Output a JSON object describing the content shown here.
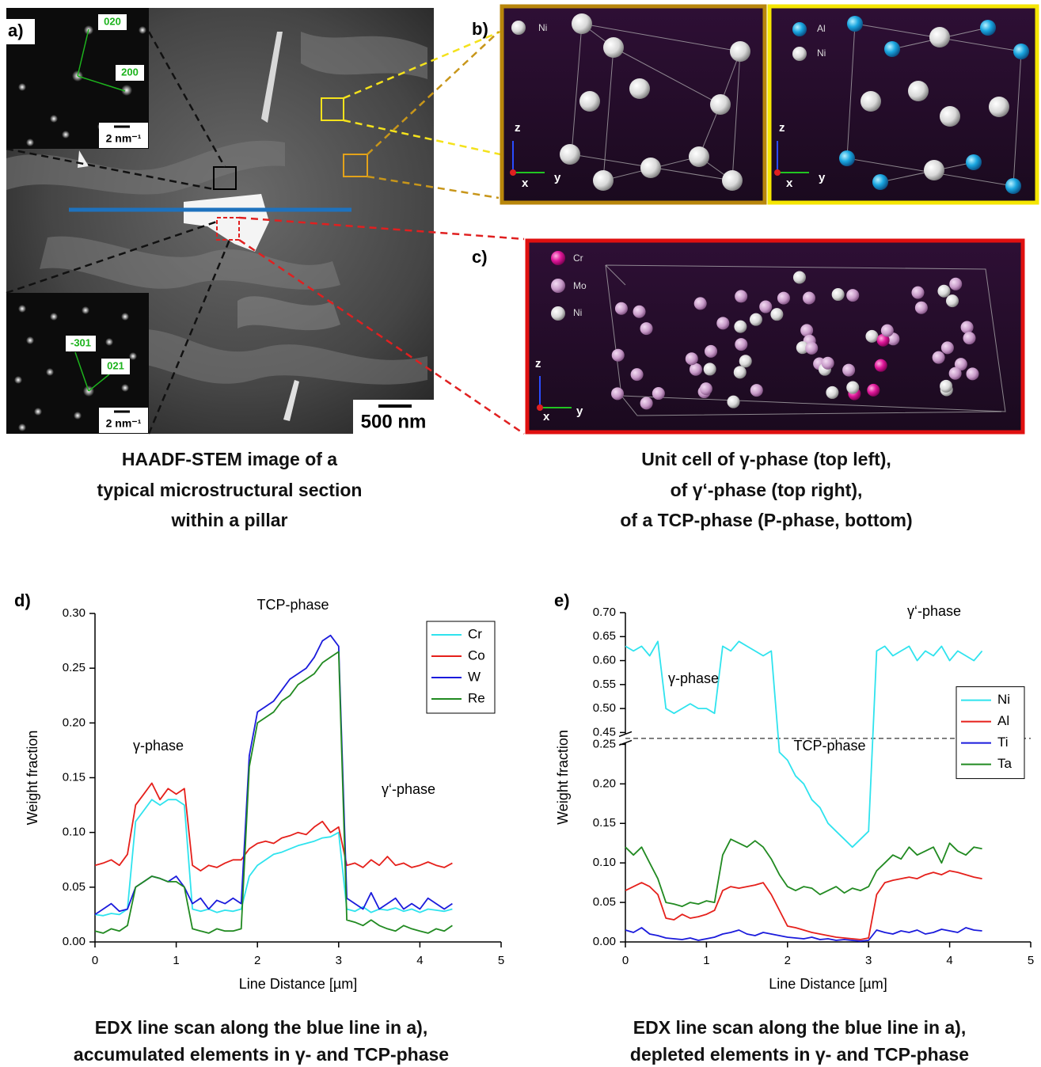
{
  "panel_a": {
    "label": "a)",
    "inset_top": {
      "spots": [
        "020",
        "200"
      ],
      "scale": "2 nm⁻¹"
    },
    "inset_bottom": {
      "spots": [
        "-301",
        "021"
      ],
      "scale": "2 nm⁻¹"
    },
    "scale_bar": "500 nm",
    "caption": [
      "HAADF-STEM image of a",
      "typical microstructural section",
      "within a pillar"
    ]
  },
  "panel_b": {
    "label": "b)",
    "left": {
      "legend": [
        "Ni"
      ],
      "axes": [
        "z",
        "y",
        "x"
      ]
    },
    "right": {
      "legend": [
        "Al",
        "Ni"
      ],
      "axes": [
        "z",
        "y",
        "x"
      ]
    }
  },
  "panel_c": {
    "label": "c)",
    "legend": [
      "Cr",
      "Mo",
      "Ni"
    ],
    "axes": [
      "z",
      "y",
      "x"
    ]
  },
  "caption_bc": [
    "Unit cell of γ-phase (top left),",
    "of γ‘-phase (top right),",
    "of a TCP-phase (P-phase, bottom)"
  ],
  "chart_data": [
    {
      "type": "line",
      "panel_label": "d)",
      "xlabel": "Line Distance [µm]",
      "ylabel": "Weight fraction",
      "annotations": [
        "TCP-phase",
        "γ-phase",
        "γ‘-phase"
      ],
      "caption": [
        "EDX line scan along the blue line in a),",
        "accumulated elements in γ- and TCP-phase"
      ],
      "legend": "upper right",
      "xlim": [
        0,
        5
      ],
      "xticks": [
        0,
        1,
        2,
        3,
        4,
        5
      ],
      "ylim": [
        0,
        0.3
      ],
      "yticks": [
        {
          "value": 0,
          "label": "0.00"
        },
        {
          "value": 0.05,
          "label": "0.05"
        },
        {
          "value": 0.1,
          "label": "0.10"
        },
        {
          "value": 0.15,
          "label": "0.15"
        },
        {
          "value": 0.2,
          "label": "0.20"
        },
        {
          "value": 0.25,
          "label": "0.25"
        },
        {
          "value": 0.3,
          "label": "0.30"
        }
      ],
      "x": [
        0,
        0.1,
        0.2,
        0.3,
        0.4,
        0.5,
        0.6,
        0.7,
        0.8,
        0.9,
        1,
        1.1,
        1.2,
        1.3,
        1.4,
        1.5,
        1.6,
        1.7,
        1.8,
        1.9,
        2,
        2.1,
        2.2,
        2.3,
        2.4,
        2.5,
        2.6,
        2.7,
        2.8,
        2.9,
        3,
        3.1,
        3.2,
        3.3,
        3.4,
        3.5,
        3.6,
        3.7,
        3.8,
        3.9,
        4,
        4.1,
        4.2,
        4.3,
        4.4
      ],
      "series": [
        {
          "name": "Cr",
          "color": "#2fe3ee",
          "values": [
            0.025,
            0.024,
            0.026,
            0.025,
            0.03,
            0.11,
            0.12,
            0.13,
            0.125,
            0.13,
            0.13,
            0.125,
            0.03,
            0.028,
            0.03,
            0.027,
            0.029,
            0.028,
            0.03,
            0.06,
            0.07,
            0.075,
            0.08,
            0.082,
            0.085,
            0.088,
            0.09,
            0.092,
            0.095,
            0.096,
            0.1,
            0.03,
            0.028,
            0.032,
            0.027,
            0.03,
            0.029,
            0.031,
            0.028,
            0.03,
            0.027,
            0.03,
            0.029,
            0.028,
            0.03
          ]
        },
        {
          "name": "Co",
          "color": "#e5201b",
          "values": [
            0.07,
            0.072,
            0.075,
            0.07,
            0.08,
            0.125,
            0.135,
            0.145,
            0.13,
            0.14,
            0.135,
            0.14,
            0.07,
            0.065,
            0.07,
            0.068,
            0.072,
            0.075,
            0.075,
            0.085,
            0.09,
            0.092,
            0.09,
            0.095,
            0.097,
            0.1,
            0.098,
            0.105,
            0.11,
            0.1,
            0.105,
            0.07,
            0.072,
            0.068,
            0.075,
            0.07,
            0.078,
            0.07,
            0.072,
            0.068,
            0.07,
            0.073,
            0.07,
            0.068,
            0.072
          ]
        },
        {
          "name": "W",
          "color": "#1b1bdc",
          "values": [
            0.025,
            0.03,
            0.035,
            0.028,
            0.03,
            0.05,
            0.055,
            0.06,
            0.058,
            0.055,
            0.06,
            0.05,
            0.035,
            0.04,
            0.03,
            0.038,
            0.035,
            0.04,
            0.035,
            0.17,
            0.21,
            0.215,
            0.22,
            0.23,
            0.24,
            0.245,
            0.25,
            0.26,
            0.275,
            0.28,
            0.27,
            0.04,
            0.035,
            0.03,
            0.045,
            0.03,
            0.035,
            0.04,
            0.03,
            0.035,
            0.03,
            0.04,
            0.035,
            0.03,
            0.035
          ]
        },
        {
          "name": "Re",
          "color": "#218a21",
          "values": [
            0.01,
            0.008,
            0.012,
            0.01,
            0.015,
            0.05,
            0.055,
            0.06,
            0.058,
            0.055,
            0.055,
            0.05,
            0.012,
            0.01,
            0.008,
            0.012,
            0.01,
            0.01,
            0.012,
            0.16,
            0.2,
            0.205,
            0.21,
            0.22,
            0.225,
            0.235,
            0.24,
            0.245,
            0.255,
            0.26,
            0.265,
            0.02,
            0.018,
            0.015,
            0.02,
            0.015,
            0.012,
            0.01,
            0.015,
            0.012,
            0.01,
            0.008,
            0.012,
            0.01,
            0.015
          ]
        }
      ]
    },
    {
      "type": "line",
      "panel_label": "e)",
      "xlabel": "Line Distance [µm]",
      "ylabel": "Weight fraction",
      "annotations": [
        "γ-phase",
        "TCP-phase",
        "γ‘-phase"
      ],
      "caption": [
        "EDX line scan along the blue line in a),",
        "depleted elements in γ- and TCP-phase"
      ],
      "legend": "center right",
      "xlim": [
        0,
        5
      ],
      "xticks": [
        0,
        1,
        2,
        3,
        4,
        5
      ],
      "ylim": [
        0,
        0.7
      ],
      "ybreak": [
        0.25,
        0.45
      ],
      "yticks": [
        {
          "value": 0,
          "label": "0.00"
        },
        {
          "value": 0.05,
          "label": "0.05"
        },
        {
          "value": 0.1,
          "label": "0.10"
        },
        {
          "value": 0.15,
          "label": "0.15"
        },
        {
          "value": 0.2,
          "label": "0.20"
        },
        {
          "value": 0.25,
          "label": "0.25"
        },
        {
          "value": 0.45,
          "label": "0.45"
        },
        {
          "value": 0.5,
          "label": "0.50"
        },
        {
          "value": 0.55,
          "label": "0.55"
        },
        {
          "value": 0.6,
          "label": "0.60"
        },
        {
          "value": 0.65,
          "label": "0.65"
        },
        {
          "value": 0.7,
          "label": "0.70"
        }
      ],
      "x": [
        0,
        0.1,
        0.2,
        0.3,
        0.4,
        0.5,
        0.6,
        0.7,
        0.8,
        0.9,
        1,
        1.1,
        1.2,
        1.3,
        1.4,
        1.5,
        1.6,
        1.7,
        1.8,
        1.9,
        2,
        2.1,
        2.2,
        2.3,
        2.4,
        2.5,
        2.6,
        2.7,
        2.8,
        2.9,
        3,
        3.1,
        3.2,
        3.3,
        3.4,
        3.5,
        3.6,
        3.7,
        3.8,
        3.9,
        4,
        4.1,
        4.2,
        4.3,
        4.4
      ],
      "series": [
        {
          "name": "Ni",
          "color": "#2fe3ee",
          "values": [
            0.63,
            0.62,
            0.63,
            0.61,
            0.64,
            0.5,
            0.49,
            0.5,
            0.51,
            0.5,
            0.5,
            0.49,
            0.63,
            0.62,
            0.64,
            0.63,
            0.62,
            0.61,
            0.62,
            0.24,
            0.23,
            0.21,
            0.2,
            0.18,
            0.17,
            0.15,
            0.14,
            0.13,
            0.12,
            0.13,
            0.14,
            0.62,
            0.63,
            0.61,
            0.62,
            0.63,
            0.6,
            0.62,
            0.61,
            0.63,
            0.6,
            0.62,
            0.61,
            0.6,
            0.62
          ]
        },
        {
          "name": "Al",
          "color": "#e5201b",
          "values": [
            0.065,
            0.07,
            0.075,
            0.07,
            0.06,
            0.03,
            0.028,
            0.035,
            0.03,
            0.032,
            0.035,
            0.04,
            0.065,
            0.07,
            0.068,
            0.07,
            0.072,
            0.075,
            0.06,
            0.04,
            0.02,
            0.018,
            0.015,
            0.012,
            0.01,
            0.008,
            0.006,
            0.005,
            0.004,
            0.003,
            0.005,
            0.06,
            0.075,
            0.078,
            0.08,
            0.082,
            0.08,
            0.085,
            0.088,
            0.085,
            0.09,
            0.088,
            0.085,
            0.082,
            0.08
          ]
        },
        {
          "name": "Ti",
          "color": "#1b1bdc",
          "values": [
            0.015,
            0.012,
            0.018,
            0.01,
            0.008,
            0.005,
            0.004,
            0.003,
            0.005,
            0.002,
            0.004,
            0.006,
            0.01,
            0.012,
            0.015,
            0.01,
            0.008,
            0.012,
            0.01,
            0.008,
            0.006,
            0.005,
            0.004,
            0.006,
            0.003,
            0.004,
            0.002,
            0.003,
            0.002,
            0.001,
            0.002,
            0.015,
            0.012,
            0.01,
            0.014,
            0.012,
            0.015,
            0.01,
            0.012,
            0.016,
            0.014,
            0.012,
            0.018,
            0.015,
            0.014
          ]
        },
        {
          "name": "Ta",
          "color": "#218a21",
          "values": [
            0.12,
            0.11,
            0.12,
            0.1,
            0.08,
            0.05,
            0.048,
            0.045,
            0.05,
            0.048,
            0.052,
            0.05,
            0.11,
            0.13,
            0.125,
            0.12,
            0.128,
            0.12,
            0.105,
            0.085,
            0.07,
            0.065,
            0.07,
            0.068,
            0.06,
            0.065,
            0.07,
            0.062,
            0.068,
            0.065,
            0.07,
            0.09,
            0.1,
            0.11,
            0.105,
            0.12,
            0.11,
            0.115,
            0.12,
            0.1,
            0.125,
            0.115,
            0.11,
            0.12,
            0.118
          ]
        }
      ]
    }
  ]
}
